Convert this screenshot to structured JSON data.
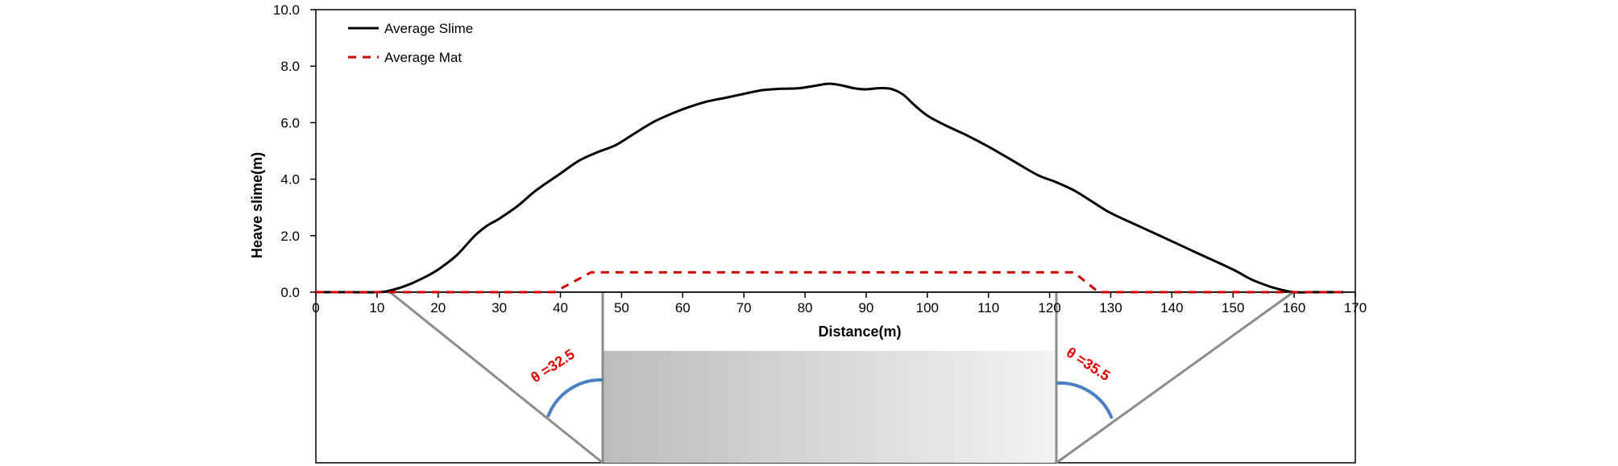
{
  "chart_data": {
    "type": "line",
    "xlabel": "Distance(m)",
    "ylabel": "Heave slime(m)",
    "xlim": [
      0,
      170
    ],
    "ylim": [
      0,
      10
    ],
    "x_ticks": [
      "0",
      "10",
      "20",
      "30",
      "40",
      "50",
      "60",
      "70",
      "80",
      "90",
      "100",
      "110",
      "120",
      "130",
      "140",
      "150",
      "160",
      "170"
    ],
    "y_ticks": [
      "0.0",
      "2.0",
      "4.0",
      "6.0",
      "8.0",
      "10.0"
    ],
    "grid": false,
    "legend_position": "top-left",
    "series": [
      {
        "name": "Average Slime",
        "style": "solid",
        "color": "#000000",
        "x": [
          0,
          5,
          10,
          12,
          15,
          18,
          20,
          23,
          26,
          28,
          30,
          33,
          36,
          40,
          43,
          46,
          49,
          52,
          55,
          58,
          61,
          64,
          67,
          70,
          73,
          76,
          79,
          82,
          84,
          86,
          88,
          90,
          92,
          94,
          96,
          98,
          100,
          103,
          106,
          110,
          114,
          118,
          121,
          124,
          127,
          130,
          135,
          140,
          145,
          150,
          153,
          156,
          158,
          160,
          163,
          166,
          168
        ],
        "y": [
          0.0,
          0.0,
          0.0,
          0.05,
          0.25,
          0.55,
          0.8,
          1.3,
          2.0,
          2.35,
          2.6,
          3.05,
          3.6,
          4.2,
          4.65,
          4.95,
          5.2,
          5.6,
          6.0,
          6.3,
          6.55,
          6.75,
          6.88,
          7.02,
          7.15,
          7.2,
          7.22,
          7.32,
          7.38,
          7.32,
          7.22,
          7.18,
          7.22,
          7.2,
          7.0,
          6.6,
          6.25,
          5.9,
          5.6,
          5.15,
          4.65,
          4.15,
          3.9,
          3.6,
          3.2,
          2.8,
          2.3,
          1.8,
          1.3,
          0.8,
          0.45,
          0.2,
          0.08,
          0.0,
          0.0,
          0.0,
          0.0
        ]
      },
      {
        "name": "Average Mat",
        "style": "dashed",
        "color": "#d00000",
        "x": [
          0,
          39,
          45,
          121,
          124,
          128,
          168
        ],
        "y": [
          0.0,
          0.0,
          0.7,
          0.7,
          0.7,
          0.0,
          0.0
        ]
      }
    ],
    "angle_annotations": [
      "θ =32.5",
      "θ =35.5"
    ],
    "colors": {
      "slime": "#000000",
      "mat": "#d00000",
      "angle_arc": "#4a7fc1",
      "angle_text": "#e00000",
      "slope_lines": "#8c8c8c",
      "trench_fill_dark": "#bcbcbc",
      "trench_fill_light": "#f3f3f3"
    }
  }
}
